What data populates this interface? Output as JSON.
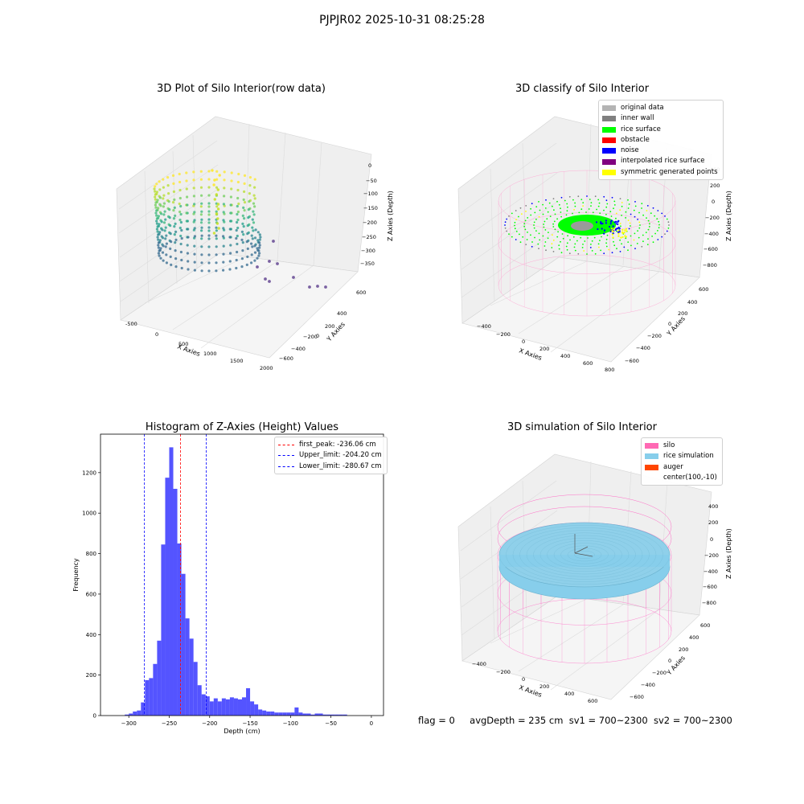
{
  "figure": {
    "title": "PJPJR02 2025-10-31 08:25:28",
    "status": {
      "flag": "flag = 0",
      "avg_depth": "avgDepth = 235 cm",
      "sv1": "sv1 = 700~2300",
      "sv2": "sv2 = 700~2300"
    }
  },
  "panels": {
    "raw": {
      "title": "3D Plot of Silo Interior(row data)",
      "xlabel": "X Axies",
      "ylabel": "Y Axies",
      "zlabel": "Z Axies (Depth)",
      "xticks": [
        "-500",
        "0",
        "500",
        "1000",
        "1500",
        "2000"
      ],
      "yticks": [
        "600",
        "400",
        "200",
        "0",
        "−200",
        "−400",
        "−600"
      ],
      "zticks": [
        "0",
        "−50",
        "−100",
        "−150",
        "−200",
        "−250",
        "−300",
        "−350"
      ]
    },
    "classify": {
      "title": "3D classify of Silo Interior",
      "xlabel": "X Axies",
      "ylabel": "Y Axies",
      "zlabel": "Z Axies (Depth)",
      "xticks": [
        "−400",
        "−200",
        "0",
        "200",
        "400",
        "600",
        "800"
      ],
      "yticks": [
        "600",
        "400",
        "200",
        "0",
        "−200",
        "−400",
        "−600"
      ],
      "zticks": [
        "400",
        "200",
        "0",
        "−200",
        "−400",
        "−600",
        "−800"
      ],
      "legend": [
        {
          "label": "original data",
          "color": "#b4b4b4"
        },
        {
          "label": "inner wall",
          "color": "#808080"
        },
        {
          "label": "rice surface",
          "color": "#00ff00"
        },
        {
          "label": "obstacle",
          "color": "#ff0000"
        },
        {
          "label": "noise",
          "color": "#0000ff"
        },
        {
          "label": "interpolated rice surface",
          "color": "#800080"
        },
        {
          "label": "symmetric generated points",
          "color": "#ffff00"
        }
      ]
    },
    "simulation": {
      "title": "3D simulation of Silo Interior",
      "xlabel": "X Axies",
      "ylabel": "Y Axies",
      "zlabel": "Z Axies (Depth)",
      "xticks": [
        "−400",
        "−200",
        "0",
        "200",
        "400",
        "600"
      ],
      "yticks": [
        "600",
        "400",
        "200",
        "0",
        "−200",
        "−400",
        "−600"
      ],
      "zticks": [
        "400",
        "200",
        "0",
        "−200",
        "−400",
        "−600",
        "−800"
      ],
      "legend": [
        {
          "label": "silo",
          "color": "#ff69b4"
        },
        {
          "label": "rice simulation",
          "color": "#87ceeb"
        },
        {
          "label": "auger",
          "color": "#ff4500"
        },
        {
          "label": "center(100,-10)",
          "color": ""
        }
      ]
    }
  },
  "chart_data": [
    {
      "type": "scatter",
      "title": "3D Plot of Silo Interior(row data)",
      "xlabel": "X Axies",
      "ylabel": "Y Axies",
      "zlabel": "Z Axies (Depth)",
      "xlim": [
        -600,
        2100
      ],
      "ylim": [
        -700,
        700
      ],
      "zlim": [
        -390,
        10
      ],
      "colormap": "viridis"
    },
    {
      "type": "scatter",
      "title": "3D classify of Silo Interior",
      "xlabel": "X Axies",
      "ylabel": "Y Axies",
      "zlabel": "Z Axies (Depth)",
      "xlim": [
        -500,
        820
      ],
      "ylim": [
        -700,
        700
      ],
      "zlim": [
        -900,
        450
      ],
      "series": [
        {
          "name": "original data",
          "color": "#b4b4b4"
        },
        {
          "name": "inner wall",
          "color": "#808080"
        },
        {
          "name": "rice surface",
          "color": "#00ff00"
        },
        {
          "name": "obstacle",
          "color": "#ff0000"
        },
        {
          "name": "noise",
          "color": "#0000ff"
        },
        {
          "name": "interpolated rice surface",
          "color": "#800080"
        },
        {
          "name": "symmetric generated points",
          "color": "#ffff00"
        }
      ]
    },
    {
      "type": "bar",
      "title": "Histogram of Z-Axies (Height) Values",
      "xlabel": "Depth (cm)",
      "ylabel": "Frequency",
      "xlim": [
        -335,
        15
      ],
      "ylim": [
        0,
        1390
      ],
      "xticks": [
        -300,
        -250,
        -200,
        -150,
        -100,
        -50,
        0
      ],
      "yticks": [
        0,
        200,
        400,
        600,
        800,
        1000,
        1200
      ],
      "bin_width": 5,
      "bin_starts": [
        -310,
        -305,
        -300,
        -295,
        -290,
        -285,
        -280,
        -275,
        -270,
        -265,
        -260,
        -255,
        -250,
        -245,
        -240,
        -235,
        -230,
        -225,
        -220,
        -215,
        -210,
        -205,
        -200,
        -195,
        -190,
        -185,
        -180,
        -175,
        -170,
        -165,
        -160,
        -155,
        -150,
        -145,
        -140,
        -135,
        -130,
        -125,
        -120,
        -115,
        -110,
        -105,
        -100,
        -95,
        -90,
        -85,
        -80,
        -75,
        -70,
        -65,
        -60,
        -55,
        -50,
        -45,
        -40,
        -35,
        -30,
        -25,
        -20,
        -15,
        -10,
        -5
      ],
      "values": [
        0,
        5,
        10,
        20,
        25,
        65,
        175,
        185,
        255,
        370,
        845,
        1175,
        1325,
        1120,
        850,
        700,
        480,
        380,
        265,
        150,
        105,
        95,
        70,
        85,
        70,
        85,
        80,
        90,
        85,
        80,
        90,
        135,
        70,
        55,
        30,
        25,
        20,
        20,
        15,
        15,
        15,
        15,
        15,
        40,
        15,
        10,
        10,
        5,
        10,
        10,
        5,
        5,
        5,
        5,
        5,
        5,
        0,
        0,
        0,
        0,
        0,
        0
      ],
      "lines": [
        {
          "label": "first_peak: -236.06 cm",
          "x": -236.06,
          "color": "#ff0000"
        },
        {
          "label": "Upper_limit: -204.20 cm",
          "x": -204.2,
          "color": "#0000ff"
        },
        {
          "label": "Lower_limit: -280.67 cm",
          "x": -280.67,
          "color": "#0000ff"
        }
      ],
      "bar_color": "#4b4bff"
    },
    {
      "type": "scatter",
      "title": "3D simulation of Silo Interior",
      "xlabel": "X Axies",
      "ylabel": "Y Axies",
      "zlabel": "Z Axies (Depth)",
      "xlim": [
        -500,
        720
      ],
      "ylim": [
        -700,
        700
      ],
      "zlim": [
        -900,
        450
      ],
      "series": [
        {
          "name": "silo",
          "color": "#ff69b4"
        },
        {
          "name": "rice simulation",
          "color": "#87ceeb"
        },
        {
          "name": "auger",
          "color": "#ff4500"
        },
        {
          "name": "center(100,-10)"
        }
      ]
    }
  ]
}
